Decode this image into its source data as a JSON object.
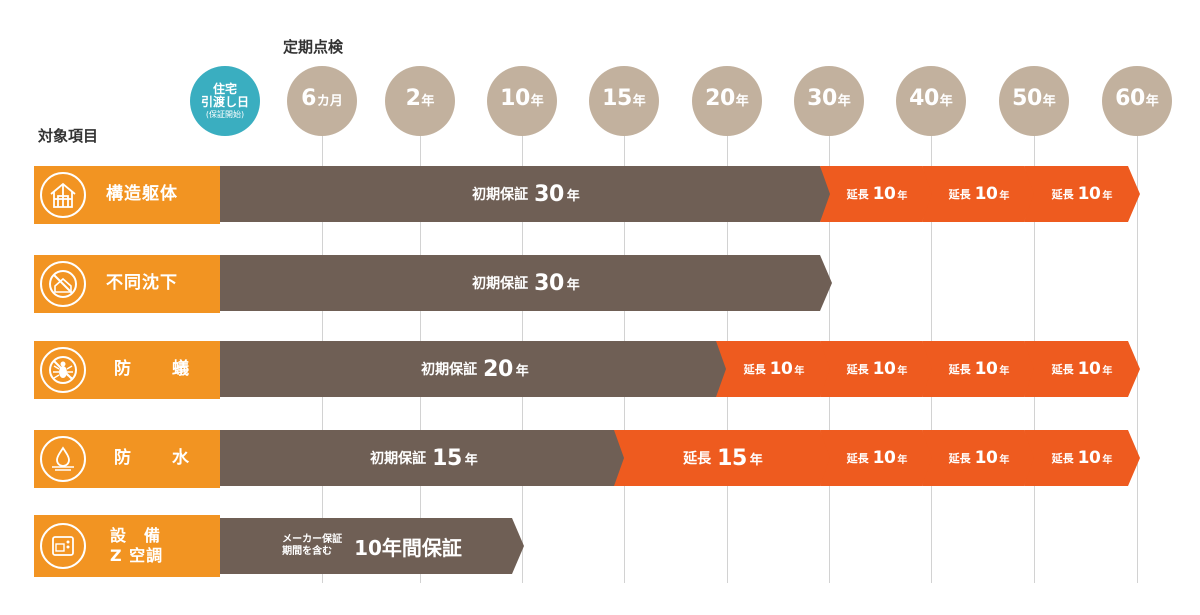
{
  "header": {
    "title": "定期点検",
    "items_title": "対象項目"
  },
  "start": {
    "line1": "住宅",
    "line2": "引渡し日",
    "line3": "(保証開始)"
  },
  "ticks": [
    {
      "num": "6",
      "unit": "カ月"
    },
    {
      "num": "2",
      "unit": "年"
    },
    {
      "num": "10",
      "unit": "年"
    },
    {
      "num": "15",
      "unit": "年"
    },
    {
      "num": "20",
      "unit": "年"
    },
    {
      "num": "30",
      "unit": "年"
    },
    {
      "num": "40",
      "unit": "年"
    },
    {
      "num": "50",
      "unit": "年"
    },
    {
      "num": "60",
      "unit": "年"
    }
  ],
  "rows": [
    {
      "label": "構造躯体",
      "icon": "house-frame-icon",
      "initial": {
        "text": "初期保証",
        "num": "30",
        "unit": "年"
      },
      "extensions": [
        {
          "text": "延長",
          "num": "10",
          "unit": "年"
        },
        {
          "text": "延長",
          "num": "10",
          "unit": "年"
        },
        {
          "text": "延長",
          "num": "10",
          "unit": "年"
        }
      ]
    },
    {
      "label": "不同沈下",
      "icon": "no-subsidence-icon",
      "initial": {
        "text": "初期保証",
        "num": "30",
        "unit": "年"
      },
      "extensions": []
    },
    {
      "label": "防　蟻",
      "icon": "termite-icon",
      "initial": {
        "text": "初期保証",
        "num": "20",
        "unit": "年"
      },
      "extensions": [
        {
          "text": "延長",
          "num": "10",
          "unit": "年"
        },
        {
          "text": "延長",
          "num": "10",
          "unit": "年"
        },
        {
          "text": "延長",
          "num": "10",
          "unit": "年"
        },
        {
          "text": "延長",
          "num": "10",
          "unit": "年"
        }
      ]
    },
    {
      "label": "防　水",
      "icon": "waterdrop-icon",
      "initial": {
        "text": "初期保証",
        "num": "15",
        "unit": "年"
      },
      "extensions": [
        {
          "text": "延長",
          "num": "15",
          "unit": "年"
        },
        {
          "text": "延長",
          "num": "10",
          "unit": "年"
        },
        {
          "text": "延長",
          "num": "10",
          "unit": "年"
        },
        {
          "text": "延長",
          "num": "10",
          "unit": "年"
        }
      ]
    },
    {
      "label_line1": "設　備",
      "label_line2": "Z 空調",
      "icon": "appliance-icon",
      "maker": {
        "line1": "メーカー保証",
        "line2": "期間を含む",
        "big": "10年間保証"
      }
    }
  ]
}
